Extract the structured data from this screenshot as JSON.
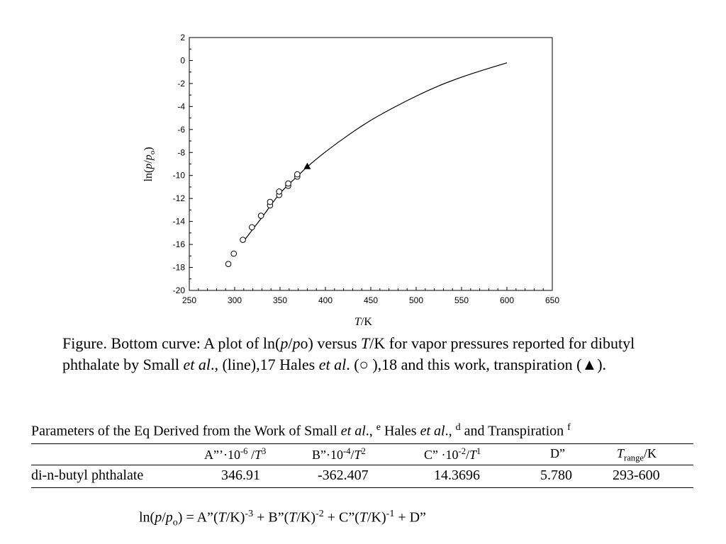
{
  "chart_data": {
    "type": "scatter",
    "x_axis": {
      "label_symbol": "T",
      "label_unit": "/K",
      "range": [
        250,
        650
      ],
      "ticks": [
        250,
        300,
        350,
        400,
        450,
        500,
        550,
        600,
        650
      ]
    },
    "y_axis": {
      "label_prefix": "ln(",
      "label_p": "p",
      "label_slash": "/",
      "label_po": "p",
      "label_o": "o",
      "label_suffix": ")",
      "range": [
        -20,
        2
      ],
      "ticks": [
        2,
        0,
        -2,
        -4,
        -6,
        -8,
        -10,
        -12,
        -14,
        -16,
        -18,
        -20
      ]
    },
    "grid": false,
    "series": [
      {
        "key": "small_line",
        "mark": "line",
        "x": [
          310,
          330,
          350,
          370,
          380,
          400,
          425,
          450,
          475,
          500,
          525,
          550,
          575,
          600
        ],
        "y": [
          -15.7,
          -13.65,
          -11.55,
          -10.0,
          -9.25,
          -7.95,
          -6.5,
          -5.2,
          -4.1,
          -3.1,
          -2.2,
          -1.45,
          -0.8,
          -0.2
        ]
      },
      {
        "key": "hales",
        "mark": "open-circle",
        "x": [
          293,
          299,
          309,
          319,
          329,
          339,
          339,
          349,
          349,
          359,
          359,
          369,
          369
        ],
        "y": [
          -17.7,
          -16.8,
          -15.6,
          -14.5,
          -13.5,
          -12.6,
          -12.3,
          -11.7,
          -11.4,
          -10.9,
          -10.7,
          -10.1,
          -9.9
        ]
      },
      {
        "key": "transpiration",
        "mark": "filled-triangle",
        "x": [
          380
        ],
        "y": [
          -9.2
        ]
      }
    ]
  },
  "caption": {
    "p1": "Figure. Bottom curve: A plot of ln(",
    "p_a": "p",
    "p2": "/",
    "p_b": "p",
    "p3": "o) versus ",
    "t": "T",
    "p4": "/K for vapor pressures reported for dibutyl phthalate by Small ",
    "etal1": "et al",
    "p5": "., (line),17 Hales ",
    "etal2": "et al",
    "p6": ". (",
    "circle": "○",
    "p7": " ),18 and this work, transpiration (",
    "triangle": "▲",
    "p8": ")."
  },
  "table": {
    "title_a": "Parameters of the Eq  Derived from the Work of Small ",
    "title_etal1": "et al",
    "title_b": "., ",
    "title_sup_e": "e",
    "title_c": " Hales ",
    "title_etal2": "et al",
    "title_d": "., ",
    "title_sup_d": "d",
    "title_e": " and Transpiration ",
    "title_sup_f": "f",
    "headers": {
      "a_pre": "A”’·10",
      "a_exp": "-6",
      "a_mid": " /",
      "a_T": "T",
      "a_pow": "3",
      "b_pre": "B”·10",
      "b_exp": "-4",
      "b_mid": "/",
      "b_T": "T",
      "b_pow": "2",
      "c_pre": "C” ·10",
      "c_exp": "-2",
      "c_mid": "/",
      "c_T": "T",
      "c_pow": "1",
      "d": "D”",
      "r_T": "T",
      "r_sub": "range",
      "r_unit": "/K"
    },
    "row": {
      "compound": "di-n-butyl phthalate",
      "a": "346.91",
      "b": "-362.407",
      "c": "14.3696",
      "d": "5.780",
      "range": "293-600"
    }
  },
  "equation": {
    "e1": "ln(",
    "p": "p",
    "e2": "/",
    "po": "p",
    "po_sub": "o",
    "e3": ") =  A”(",
    "t1": "T",
    "e4": "/K)",
    "s1": "-3",
    "e5": " + B”(",
    "t2": "T",
    "e6": "/K)",
    "s2": "-2",
    "e7": " + C”(",
    "t3": "T",
    "e8": "/K)",
    "s3": "-1",
    "e9": " + D”"
  }
}
